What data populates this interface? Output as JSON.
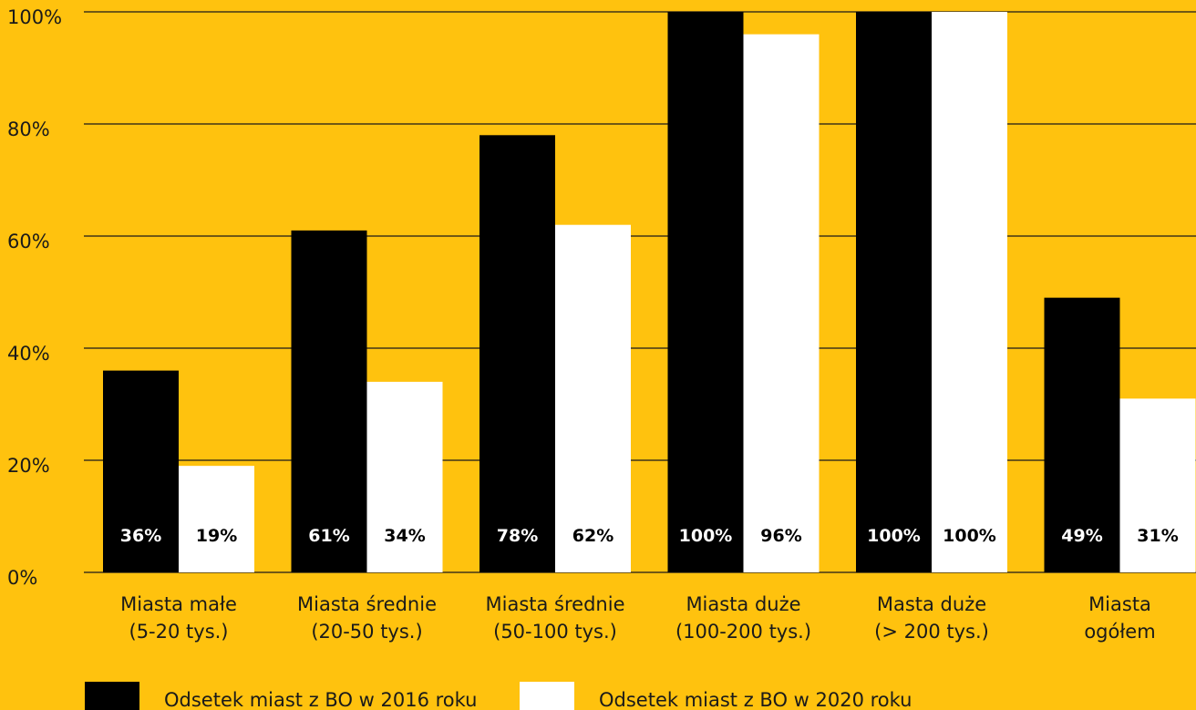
{
  "chart_data": {
    "type": "bar",
    "categories": [
      [
        "Miasta małe",
        "(5-20 tys.)"
      ],
      [
        "Miasta średnie",
        "(20-50 tys.)"
      ],
      [
        "Miasta średnie",
        "(50-100 tys.)"
      ],
      [
        "Miasta duże",
        "(100-200 tys.)"
      ],
      [
        "Masta duże",
        "(> 200 tys.)"
      ],
      [
        "Miasta",
        "ogółem"
      ]
    ],
    "series": [
      {
        "name": "Odsetek miast z BO w 2016 roku",
        "color": "#000000",
        "label_color": "#FFFFFF",
        "values": [
          36,
          61,
          78,
          100,
          100,
          49
        ],
        "labels": [
          "36%",
          "61%",
          "78%",
          "100%",
          "100%",
          "49%"
        ]
      },
      {
        "name": "Odsetek miast z BO w 2020 roku",
        "color": "#FFFFFF",
        "label_color": "#000000",
        "values": [
          19,
          34,
          62,
          96,
          100,
          31
        ],
        "labels": [
          "19%",
          "34%",
          "62%",
          "96%",
          "100%",
          "31%"
        ]
      }
    ],
    "yticks": [
      "0%",
      "20%",
      "40%",
      "60%",
      "80%",
      "100%"
    ],
    "ylim": [
      0,
      100
    ],
    "grid": true,
    "legend_position": "bottom-left",
    "background": "#FFC20E"
  }
}
